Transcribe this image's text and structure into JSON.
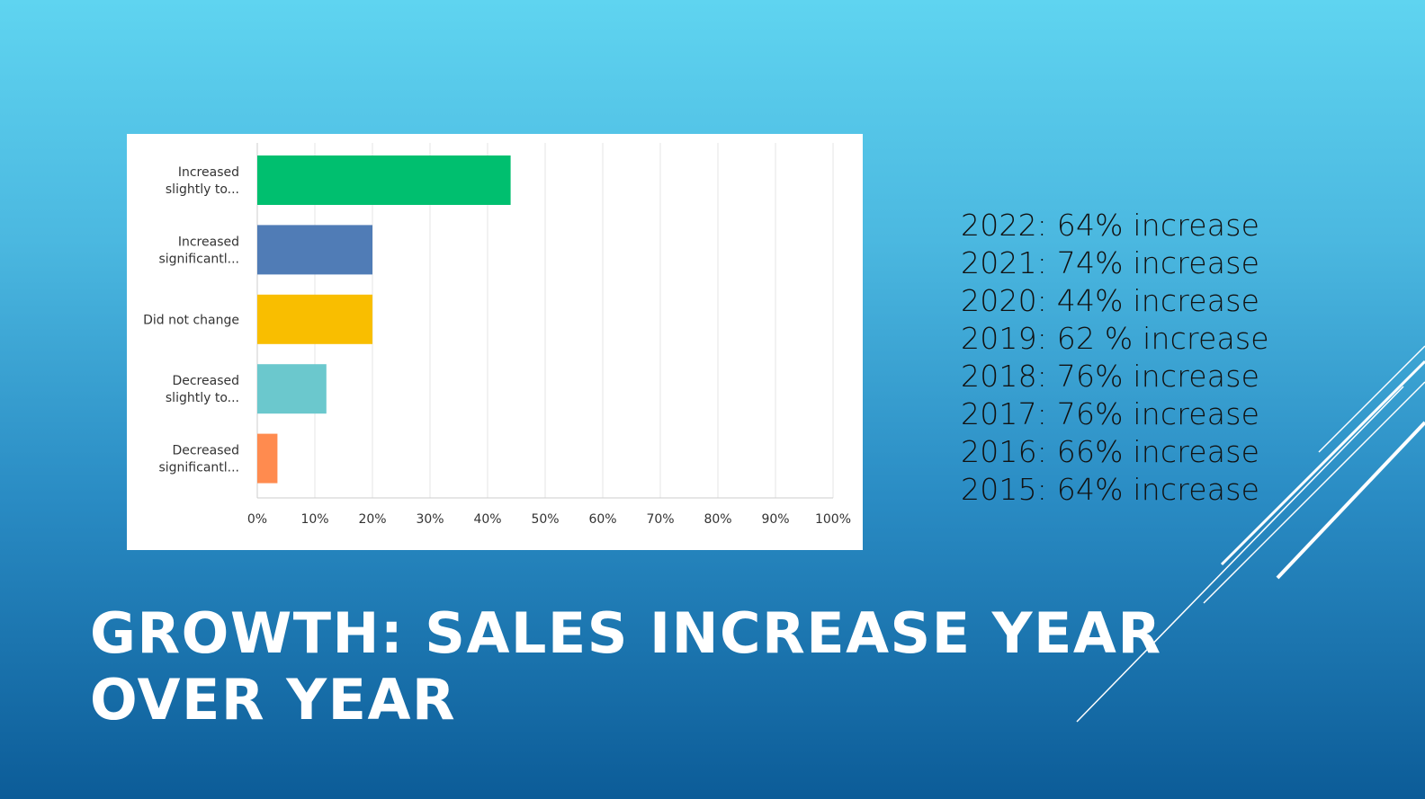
{
  "slide": {
    "title": "GROWTH: SALES INCREASE YEAR OVER YEAR",
    "stats": [
      "2022: 64% increase",
      "2021: 74% increase",
      "2020: 44% increase",
      "2019: 62 % increase",
      "2018: 76% increase",
      "2017: 76% increase",
      "2016: 66% increase",
      "2015: 64% increase"
    ]
  },
  "chart_data": {
    "type": "bar",
    "orientation": "horizontal",
    "title": "",
    "xlabel": "",
    "ylabel": "",
    "xlim": [
      0,
      100
    ],
    "grid": true,
    "categories": [
      [
        "Increased",
        "slightly to..."
      ],
      [
        "Increased",
        "significantl..."
      ],
      [
        "Did not change"
      ],
      [
        "Decreased",
        "slightly to..."
      ],
      [
        "Decreased",
        "significantl..."
      ]
    ],
    "values": [
      44,
      20,
      20,
      12,
      3.5
    ],
    "colors": [
      "#00bf6f",
      "#507cb6",
      "#f9be00",
      "#6bc8cd",
      "#ff8b4f"
    ],
    "ticks": [
      "0%",
      "10%",
      "20%",
      "30%",
      "40%",
      "50%",
      "60%",
      "70%",
      "80%",
      "90%",
      "100%"
    ]
  }
}
